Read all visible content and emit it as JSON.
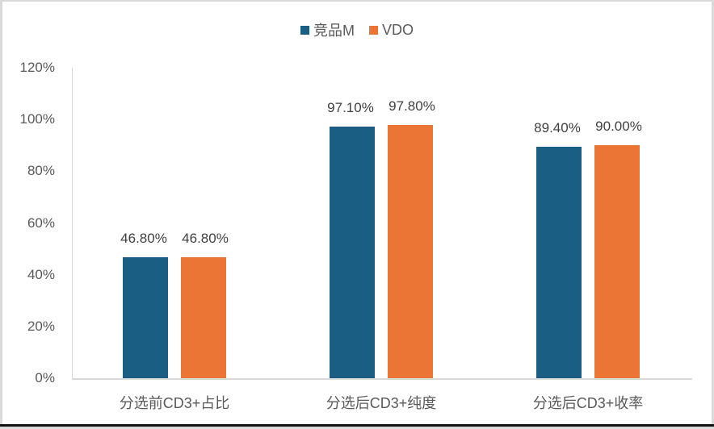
{
  "chart_data": {
    "type": "bar",
    "title": "",
    "xlabel": "",
    "ylabel": "",
    "categories": [
      "分选前CD3+占比",
      "分选后CD3+纯度",
      "分选后CD3+收率"
    ],
    "series": [
      {
        "name": "竞品M",
        "color": "#1a5e84",
        "values": [
          46.8,
          97.1,
          89.4
        ],
        "labels": [
          "46.80%",
          "97.10%",
          "89.40%"
        ]
      },
      {
        "name": "VDO",
        "color": "#eb7535",
        "values": [
          46.8,
          97.8,
          90.0
        ],
        "labels": [
          "46.80%",
          "97.80%",
          "90.00%"
        ]
      }
    ],
    "ylim": [
      0,
      120
    ],
    "yticks": [
      "0%",
      "20%",
      "40%",
      "60%",
      "80%",
      "100%",
      "120%"
    ],
    "grid": false,
    "legend_position": "top"
  },
  "legend": [
    {
      "label": "竞品M",
      "color": "#1a5e84"
    },
    {
      "label": "VDO",
      "color": "#eb7535"
    }
  ]
}
